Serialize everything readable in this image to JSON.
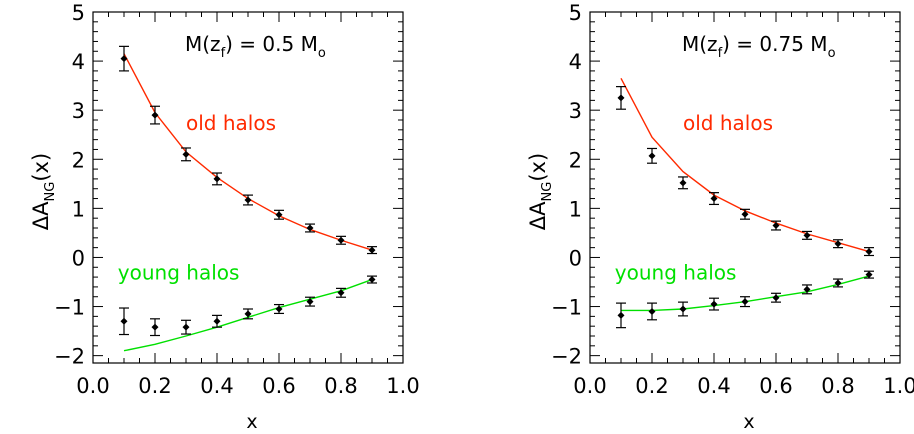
{
  "chart_data": [
    {
      "type": "line",
      "panel": "left",
      "annotation": {
        "prefix": "M(z",
        "sub": "f",
        "mid": ") = 0.5 M",
        "sub2": "o"
      },
      "xlabel": "x",
      "ylabel": {
        "base": "ΔA",
        "sub": "NG",
        "tail": "(x)"
      },
      "xlim": [
        0.0,
        1.0
      ],
      "ylim": [
        -2.15,
        5.0
      ],
      "xticks": [
        "0.0",
        "0.2",
        "0.4",
        "0.6",
        "0.8",
        "1.0"
      ],
      "xtick_values": [
        0.0,
        0.2,
        0.4,
        0.6,
        0.8,
        1.0
      ],
      "yticks": [
        "−2",
        "−1",
        "0",
        "1",
        "2",
        "3",
        "4",
        "5"
      ],
      "ytick_values": [
        -2,
        -1,
        0,
        1,
        2,
        3,
        4,
        5
      ],
      "curve_labels": [
        {
          "text": "old halos",
          "color": "#ff2a00",
          "x": 0.3,
          "y": 2.6
        },
        {
          "text": "young halos",
          "color": "#00e000",
          "x": 0.08,
          "y": -0.45
        }
      ],
      "series": [
        {
          "color": "#ff2a00",
          "line": {
            "x": [
              0.1,
              0.2,
              0.3,
              0.4,
              0.5,
              0.6,
              0.7,
              0.8,
              0.9
            ],
            "y": [
              4.15,
              2.95,
              2.15,
              1.63,
              1.2,
              0.85,
              0.57,
              0.35,
              0.15
            ]
          },
          "points": {
            "x": [
              0.1,
              0.2,
              0.3,
              0.4,
              0.5,
              0.6,
              0.7,
              0.8,
              0.9
            ],
            "y": [
              4.05,
              2.9,
              2.1,
              1.6,
              1.17,
              0.87,
              0.6,
              0.35,
              0.15
            ],
            "err": [
              0.25,
              0.18,
              0.13,
              0.12,
              0.1,
              0.09,
              0.08,
              0.08,
              0.07
            ]
          }
        },
        {
          "color": "#00e000",
          "line": {
            "x": [
              0.1,
              0.2,
              0.3,
              0.4,
              0.5,
              0.6,
              0.7,
              0.8,
              0.9
            ],
            "y": [
              -1.9,
              -1.77,
              -1.6,
              -1.42,
              -1.22,
              -1.02,
              -0.85,
              -0.68,
              -0.45
            ]
          },
          "points": {
            "x": [
              0.1,
              0.2,
              0.3,
              0.4,
              0.5,
              0.6,
              0.7,
              0.8,
              0.9
            ],
            "y": [
              -1.3,
              -1.42,
              -1.42,
              -1.3,
              -1.15,
              -1.05,
              -0.9,
              -0.72,
              -0.45
            ],
            "err": [
              0.27,
              0.17,
              0.14,
              0.12,
              0.1,
              0.09,
              0.09,
              0.09,
              0.07
            ]
          }
        }
      ]
    },
    {
      "type": "line",
      "panel": "right",
      "annotation": {
        "prefix": "M(z",
        "sub": "f",
        "mid": ") = 0.75 M",
        "sub2": "o"
      },
      "xlabel": "x",
      "ylabel": {
        "base": "ΔA",
        "sub": "NG",
        "tail": "(x)"
      },
      "xlim": [
        0.0,
        1.0
      ],
      "ylim": [
        -2.15,
        5.0
      ],
      "xticks": [
        "0.0",
        "0.2",
        "0.4",
        "0.6",
        "0.8",
        "1.0"
      ],
      "xtick_values": [
        0.0,
        0.2,
        0.4,
        0.6,
        0.8,
        1.0
      ],
      "yticks": [
        "−2",
        "−1",
        "0",
        "1",
        "2",
        "3",
        "4",
        "5"
      ],
      "ytick_values": [
        -2,
        -1,
        0,
        1,
        2,
        3,
        4,
        5
      ],
      "curve_labels": [
        {
          "text": "old halos",
          "color": "#ff2a00",
          "x": 0.3,
          "y": 2.6
        },
        {
          "text": "young halos",
          "color": "#00e000",
          "x": 0.08,
          "y": -0.45
        }
      ],
      "series": [
        {
          "color": "#ff2a00",
          "line": {
            "x": [
              0.1,
              0.2,
              0.3,
              0.4,
              0.5,
              0.6,
              0.7,
              0.8,
              0.9
            ],
            "y": [
              3.65,
              2.45,
              1.75,
              1.27,
              0.95,
              0.7,
              0.48,
              0.3,
              0.12
            ]
          },
          "points": {
            "x": [
              0.1,
              0.2,
              0.3,
              0.4,
              0.5,
              0.6,
              0.7,
              0.8,
              0.9
            ],
            "y": [
              3.25,
              2.07,
              1.52,
              1.2,
              0.88,
              0.65,
              0.45,
              0.28,
              0.12
            ],
            "err": [
              0.23,
              0.15,
              0.12,
              0.12,
              0.1,
              0.09,
              0.08,
              0.08,
              0.08
            ]
          }
        },
        {
          "color": "#00e000",
          "line": {
            "x": [
              0.1,
              0.2,
              0.3,
              0.4,
              0.5,
              0.6,
              0.7,
              0.8,
              0.9
            ],
            "y": [
              -1.08,
              -1.08,
              -1.05,
              -0.98,
              -0.9,
              -0.8,
              -0.7,
              -0.55,
              -0.38
            ]
          },
          "points": {
            "x": [
              0.1,
              0.2,
              0.3,
              0.4,
              0.5,
              0.6,
              0.7,
              0.8,
              0.9
            ],
            "y": [
              -1.18,
              -1.1,
              -1.05,
              -0.95,
              -0.9,
              -0.82,
              -0.65,
              -0.52,
              -0.35
            ]
          },
          "points_err": [
            0.25,
            0.17,
            0.14,
            0.12,
            0.1,
            0.09,
            0.09,
            0.08,
            0.07
          ]
        }
      ]
    }
  ]
}
